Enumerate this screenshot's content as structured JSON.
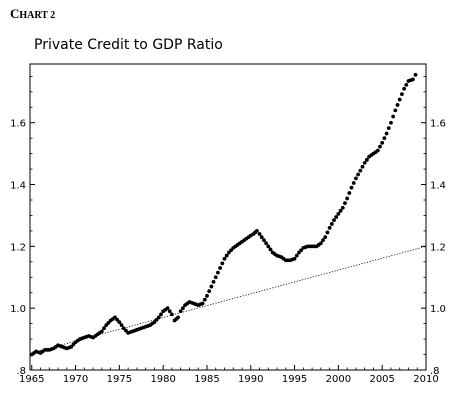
{
  "header": {
    "chart_label": "Chart 2",
    "chart_label_small": "HART 2"
  },
  "chart_data": {
    "type": "line",
    "title": "Private Credit to GDP Ratio",
    "xlabel": "",
    "ylabel": "",
    "xlim": [
      1964.8,
      2010.0
    ],
    "ylim": [
      0.8,
      1.79
    ],
    "x_ticks": [
      1965,
      1970,
      1975,
      1980,
      1985,
      1990,
      1995,
      2000,
      2005,
      2010
    ],
    "y_ticks": [
      0.8,
      1.0,
      1.2,
      1.4,
      1.6
    ],
    "y_tick_labels_left": [
      ".8",
      "1.0",
      "1.2",
      "1.4",
      "1.6"
    ],
    "y_tick_labels_right": [
      ".8",
      "1.0",
      "1.2",
      "1.4",
      "1.6"
    ],
    "grid": false,
    "series": [
      {
        "style": "dots",
        "color": "#000000",
        "points": [
          [
            1965.0,
            0.85
          ],
          [
            1965.5,
            0.86
          ],
          [
            1966.0,
            0.855
          ],
          [
            1966.5,
            0.865
          ],
          [
            1967.0,
            0.865
          ],
          [
            1967.5,
            0.87
          ],
          [
            1968.0,
            0.88
          ],
          [
            1968.5,
            0.875
          ],
          [
            1969.0,
            0.87
          ],
          [
            1969.5,
            0.875
          ],
          [
            1970.0,
            0.89
          ],
          [
            1970.5,
            0.9
          ],
          [
            1971.0,
            0.905
          ],
          [
            1971.5,
            0.91
          ],
          [
            1972.0,
            0.905
          ],
          [
            1972.5,
            0.915
          ],
          [
            1973.0,
            0.925
          ],
          [
            1973.5,
            0.945
          ],
          [
            1974.0,
            0.96
          ],
          [
            1974.5,
            0.97
          ],
          [
            1975.0,
            0.955
          ],
          [
            1975.5,
            0.935
          ],
          [
            1976.0,
            0.92
          ],
          [
            1976.5,
            0.925
          ],
          [
            1977.0,
            0.93
          ],
          [
            1977.5,
            0.935
          ],
          [
            1978.0,
            0.94
          ],
          [
            1978.5,
            0.945
          ],
          [
            1979.0,
            0.955
          ],
          [
            1979.5,
            0.97
          ],
          [
            1980.0,
            0.99
          ],
          [
            1980.5,
            1.0
          ],
          [
            1981.0,
            0.98
          ],
          [
            1981.3,
            0.96
          ],
          [
            1981.7,
            0.97
          ],
          [
            1982.0,
            0.99
          ],
          [
            1982.5,
            1.01
          ],
          [
            1983.0,
            1.02
          ],
          [
            1983.5,
            1.015
          ],
          [
            1984.0,
            1.01
          ],
          [
            1984.5,
            1.015
          ],
          [
            1985.0,
            1.04
          ],
          [
            1985.5,
            1.07
          ],
          [
            1986.0,
            1.1
          ],
          [
            1986.5,
            1.13
          ],
          [
            1987.0,
            1.16
          ],
          [
            1987.5,
            1.18
          ],
          [
            1988.0,
            1.195
          ],
          [
            1988.5,
            1.205
          ],
          [
            1989.0,
            1.215
          ],
          [
            1989.5,
            1.225
          ],
          [
            1990.0,
            1.235
          ],
          [
            1990.3,
            1.24
          ],
          [
            1990.7,
            1.25
          ],
          [
            1991.0,
            1.24
          ],
          [
            1991.5,
            1.22
          ],
          [
            1992.0,
            1.2
          ],
          [
            1992.5,
            1.18
          ],
          [
            1993.0,
            1.17
          ],
          [
            1993.5,
            1.165
          ],
          [
            1994.0,
            1.155
          ],
          [
            1994.5,
            1.155
          ],
          [
            1995.0,
            1.16
          ],
          [
            1995.5,
            1.18
          ],
          [
            1996.0,
            1.195
          ],
          [
            1996.5,
            1.2
          ],
          [
            1997.0,
            1.2
          ],
          [
            1997.5,
            1.2
          ],
          [
            1998.0,
            1.21
          ],
          [
            1998.5,
            1.23
          ],
          [
            1999.0,
            1.26
          ],
          [
            1999.5,
            1.285
          ],
          [
            2000.0,
            1.305
          ],
          [
            2000.5,
            1.325
          ],
          [
            2001.0,
            1.355
          ],
          [
            2001.5,
            1.39
          ],
          [
            2002.0,
            1.42
          ],
          [
            2002.5,
            1.445
          ],
          [
            2003.0,
            1.47
          ],
          [
            2003.5,
            1.49
          ],
          [
            2004.0,
            1.5
          ],
          [
            2004.5,
            1.51
          ],
          [
            2005.0,
            1.535
          ],
          [
            2005.5,
            1.565
          ],
          [
            2006.0,
            1.6
          ],
          [
            2006.5,
            1.64
          ],
          [
            2007.0,
            1.675
          ],
          [
            2007.5,
            1.71
          ],
          [
            2008.0,
            1.735
          ],
          [
            2008.5,
            1.74
          ],
          [
            2008.8,
            1.755
          ]
        ]
      },
      {
        "style": "dotted-trend",
        "color": "#000000",
        "points": [
          [
            1965.0,
            0.855
          ],
          [
            2010.0,
            1.2
          ]
        ]
      }
    ]
  }
}
